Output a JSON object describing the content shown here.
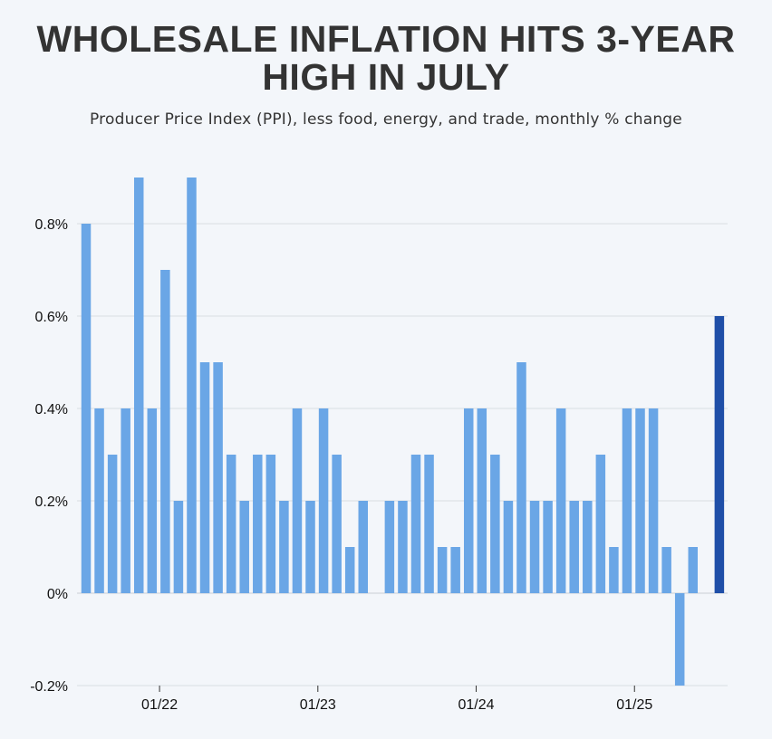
{
  "header": {
    "title_line1": "WHOLESALE INFLATION HITS 3-YEAR",
    "title_line2": "HIGH IN JULY",
    "subtitle": "Producer Price Index (PPI), less food, energy, and trade, monthly % change"
  },
  "colors": {
    "bar": "#6aa6e6",
    "highlight": "#1f4fa8",
    "grid": "#d9dde2",
    "background": "#f3f6fa"
  },
  "chart_data": {
    "type": "bar",
    "title": "WHOLESALE INFLATION HITS 3-YEAR HIGH IN JULY",
    "subtitle": "Producer Price Index (PPI), less food, energy, and trade, monthly % change",
    "xlabel": "",
    "ylabel": "",
    "ylim": [
      -0.2,
      0.9
    ],
    "yticks": [
      -0.2,
      0,
      0.2,
      0.4,
      0.6,
      0.8
    ],
    "ytick_labels": [
      "-0.2%",
      "0%",
      "0.2%",
      "0.4%",
      "0.6%",
      "0.8%"
    ],
    "xtick_labels": [
      "01/22",
      "01/23",
      "01/24",
      "01/25"
    ],
    "xtick_index": [
      6,
      18,
      30,
      42
    ],
    "start_month": "07/21",
    "end_month": "07/25",
    "highlight_index": 48,
    "grid": true,
    "values": [
      0.8,
      0.4,
      0.3,
      0.4,
      0.9,
      0.4,
      0.7,
      0.2,
      0.9,
      0.5,
      0.5,
      0.3,
      0.2,
      0.3,
      0.3,
      0.2,
      0.4,
      0.2,
      0.4,
      0.3,
      0.1,
      0.2,
      0.0,
      0.2,
      0.2,
      0.3,
      0.3,
      0.1,
      0.1,
      0.4,
      0.4,
      0.3,
      0.2,
      0.5,
      0.2,
      0.2,
      0.4,
      0.2,
      0.2,
      0.3,
      0.1,
      0.4,
      0.4,
      0.4,
      0.1,
      -0.2,
      0.1,
      0.0,
      0.6
    ]
  }
}
